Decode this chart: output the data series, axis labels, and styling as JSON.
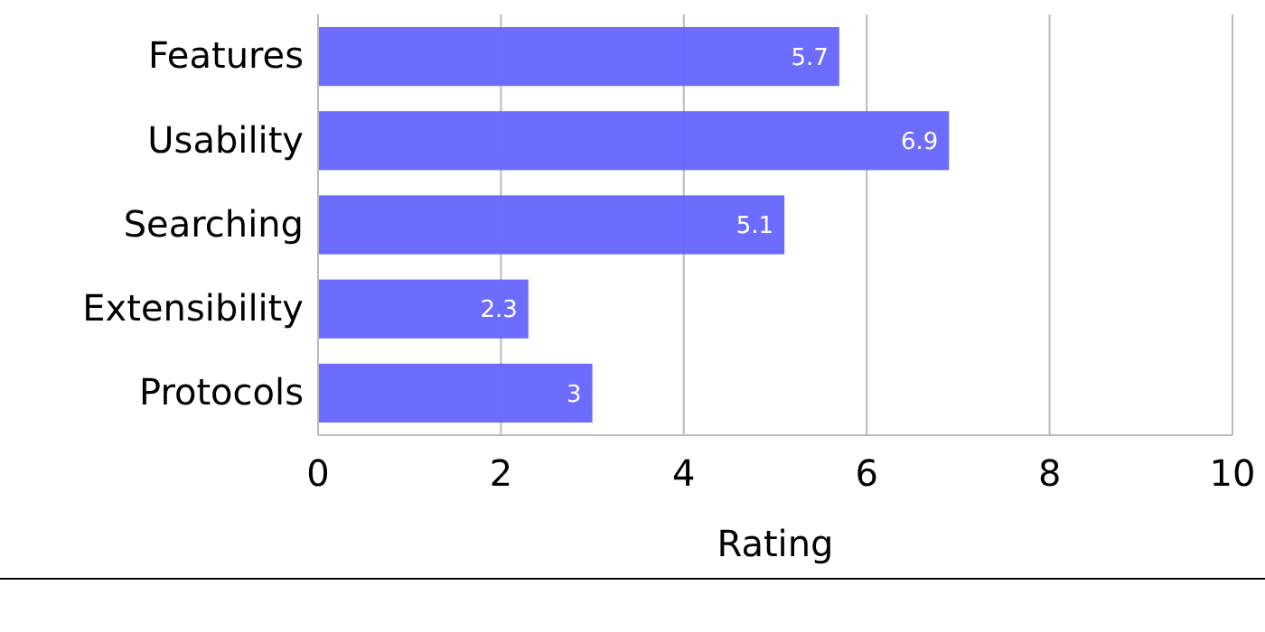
{
  "chart_data": {
    "type": "bar",
    "orientation": "horizontal",
    "categories": [
      "Features",
      "Usability",
      "Searching",
      "Extensibility",
      "Protocols"
    ],
    "values": [
      5.7,
      6.9,
      5.1,
      2.3,
      3
    ],
    "color": "#6464ff",
    "xlabel": "Rating",
    "xlim": [
      0,
      10
    ],
    "xticks": [
      0,
      2,
      4,
      6,
      8,
      10
    ],
    "grid": "x",
    "data_labels": true
  }
}
